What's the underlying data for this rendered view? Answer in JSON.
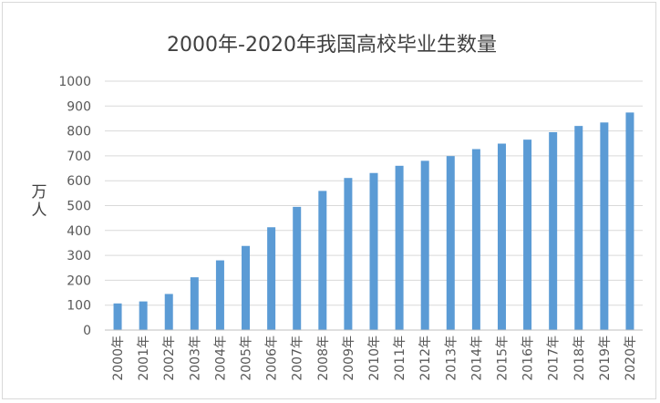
{
  "chart_data": {
    "type": "bar",
    "title": "2000年-2020年我国高校毕业生数量",
    "ylabel": "万人",
    "xlabel": "",
    "ylim": [
      0,
      1000
    ],
    "yticks": [
      0,
      100,
      200,
      300,
      400,
      500,
      600,
      700,
      800,
      900,
      1000
    ],
    "grid": true,
    "legend": "none",
    "categories": [
      "2000年",
      "2001年",
      "2002年",
      "2003年",
      "2004年",
      "2005年",
      "2006年",
      "2007年",
      "2008年",
      "2009年",
      "2010年",
      "2011年",
      "2012年",
      "2013年",
      "2014年",
      "2015年",
      "2016年",
      "2017年",
      "2018年",
      "2019年",
      "2020年"
    ],
    "series": [
      {
        "color": "#5b9bd5",
        "values": [
          107,
          115,
          145,
          212,
          280,
          338,
          413,
          495,
          559,
          611,
          631,
          660,
          680,
          699,
          727,
          749,
          765,
          795,
          820,
          834,
          874
        ]
      }
    ]
  }
}
